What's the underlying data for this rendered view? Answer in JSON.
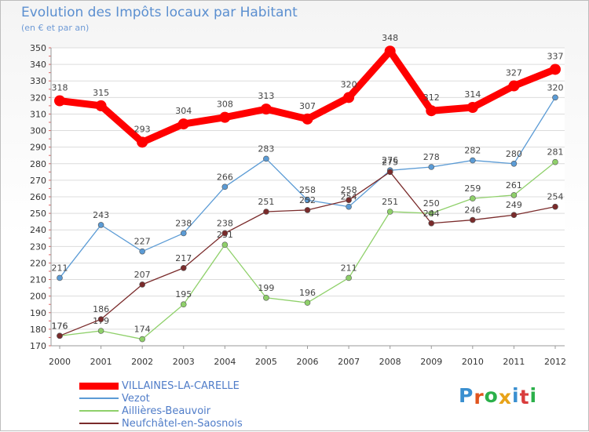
{
  "header": {
    "title": "Evolution des Impôts locaux par Habitant",
    "subtitle": "(en € et par an)"
  },
  "logo": {
    "text": "Proxiti",
    "letters": [
      "P",
      "r",
      "o",
      "x",
      "i",
      "t",
      "i"
    ],
    "colors": [
      "#3a8fd0",
      "#e0541e",
      "#2bb04a",
      "#e8a318",
      "#3a8fd0",
      "#d93c3c",
      "#2bb04a"
    ]
  },
  "chart_data": {
    "type": "line",
    "title": "Evolution des Impôts locaux par Habitant",
    "subtitle": "(en € et par an)",
    "xlabel": "",
    "ylabel": "",
    "ylim": [
      170,
      350
    ],
    "ytick_step": 10,
    "grid": true,
    "legend_position": "bottom-left",
    "categories": [
      "2000",
      "2001",
      "2002",
      "2003",
      "2004",
      "2005",
      "2006",
      "2007",
      "2008",
      "2009",
      "2010",
      "2011",
      "2012"
    ],
    "series": [
      {
        "name": "VILLAINES-LA-CARELLE",
        "color": "#ff0000",
        "width": "thick",
        "values": [
          318,
          315,
          293,
          304,
          308,
          313,
          307,
          320,
          348,
          312,
          314,
          327,
          337
        ]
      },
      {
        "name": "Vezot",
        "color": "#5b9bd5",
        "width": "thin",
        "values": [
          211,
          243,
          227,
          238,
          266,
          283,
          258,
          254,
          276,
          278,
          282,
          280,
          320
        ]
      },
      {
        "name": "Aillières-Beauvoir",
        "color": "#8fd06a",
        "width": "thin",
        "values": [
          176,
          179,
          174,
          195,
          231,
          199,
          196,
          211,
          251,
          250,
          259,
          261,
          281
        ]
      },
      {
        "name": "Neufchâtel-en-Saosnois",
        "color": "#7a2b2b",
        "width": "thin",
        "values": [
          176,
          186,
          207,
          217,
          238,
          251,
          252,
          258,
          275,
          244,
          246,
          249,
          254
        ]
      }
    ]
  }
}
